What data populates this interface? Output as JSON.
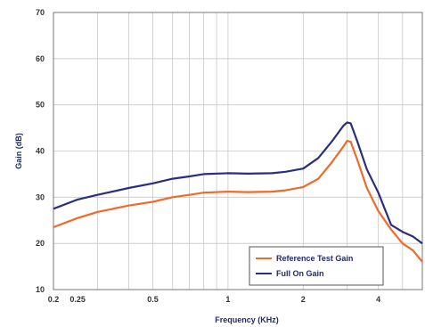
{
  "chart_data": {
    "type": "line",
    "xscale": "log",
    "xlabel": "Frequency (KHz)",
    "ylabel": "Gain (dB)",
    "xlim": [
      0.2,
      6
    ],
    "ylim": [
      10,
      70
    ],
    "xticks": [
      {
        "value": 0.2,
        "label": "0.2"
      },
      {
        "value": 0.25,
        "label": "0.25"
      },
      {
        "value": 0.5,
        "label": "0.5"
      },
      {
        "value": 1,
        "label": "1"
      },
      {
        "value": 2,
        "label": "2"
      },
      {
        "value": 4,
        "label": "4"
      }
    ],
    "yticks": [
      10,
      20,
      30,
      40,
      50,
      60,
      70
    ],
    "grid": true,
    "legend_position": "bottom-right",
    "series": [
      {
        "name": "Reference Test Gain",
        "color": "#f06a2a",
        "points": [
          [
            0.2,
            23.5
          ],
          [
            0.25,
            25.5
          ],
          [
            0.3,
            26.8
          ],
          [
            0.4,
            28.2
          ],
          [
            0.5,
            29.0
          ],
          [
            0.6,
            30.0
          ],
          [
            0.7,
            30.5
          ],
          [
            0.8,
            31.0
          ],
          [
            1.0,
            31.2
          ],
          [
            1.2,
            31.1
          ],
          [
            1.5,
            31.2
          ],
          [
            1.7,
            31.5
          ],
          [
            2.0,
            32.2
          ],
          [
            2.3,
            34.0
          ],
          [
            2.6,
            37.5
          ],
          [
            2.9,
            41.0
          ],
          [
            3.0,
            42.2
          ],
          [
            3.1,
            42.0
          ],
          [
            3.3,
            38.0
          ],
          [
            3.6,
            32.0
          ],
          [
            4.0,
            27.0
          ],
          [
            4.5,
            23.0
          ],
          [
            5.0,
            20.0
          ],
          [
            5.5,
            18.5
          ],
          [
            6.0,
            16.0
          ]
        ]
      },
      {
        "name": "Full On Gain",
        "color": "#2a2f7c",
        "points": [
          [
            0.2,
            27.5
          ],
          [
            0.25,
            29.5
          ],
          [
            0.3,
            30.5
          ],
          [
            0.4,
            32.0
          ],
          [
            0.5,
            33.0
          ],
          [
            0.6,
            34.0
          ],
          [
            0.7,
            34.5
          ],
          [
            0.8,
            35.0
          ],
          [
            1.0,
            35.2
          ],
          [
            1.2,
            35.1
          ],
          [
            1.5,
            35.2
          ],
          [
            1.7,
            35.5
          ],
          [
            2.0,
            36.2
          ],
          [
            2.3,
            38.5
          ],
          [
            2.6,
            42.0
          ],
          [
            2.9,
            45.5
          ],
          [
            3.0,
            46.2
          ],
          [
            3.1,
            46.0
          ],
          [
            3.3,
            42.0
          ],
          [
            3.6,
            36.0
          ],
          [
            4.0,
            31.0
          ],
          [
            4.5,
            24.0
          ],
          [
            5.0,
            22.5
          ],
          [
            5.5,
            21.5
          ],
          [
            6.0,
            20.0
          ]
        ]
      }
    ]
  }
}
